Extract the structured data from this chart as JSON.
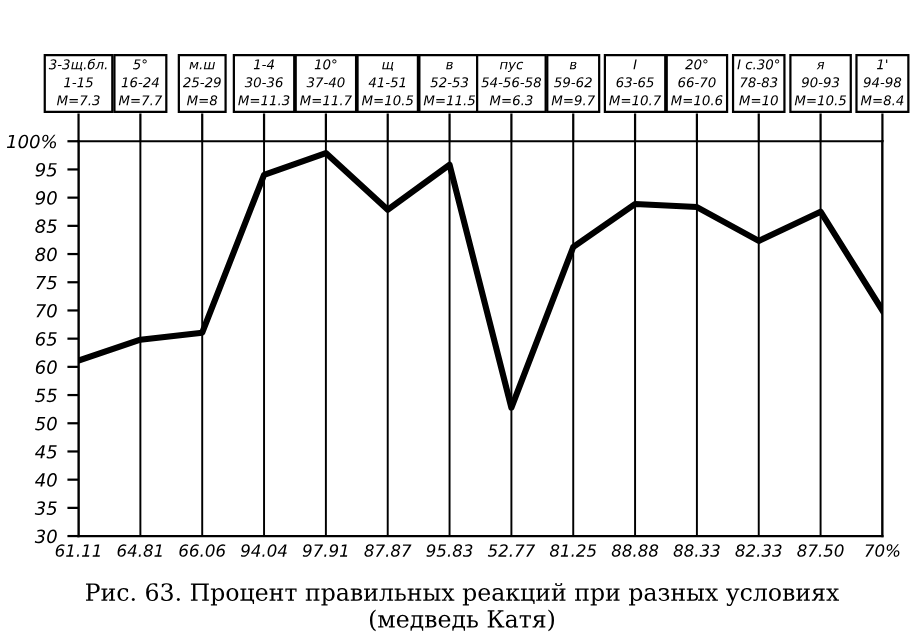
{
  "chart_data": {
    "type": "line",
    "title": "Рис. 63. Процент правильных реакций при разных условиях\n(медведь Катя)",
    "categories": [
      "3-3щ.бл.\n1-15\nМ=7.3",
      "5°\n16-24\nМ=7.7",
      "м.ш\n25-29\nМ=8",
      "1-4\n30-36\nМ=11.3",
      "10°\n37-40\nМ=11.7",
      "щ\n41-51\nМ=10.5",
      "в\n52-53\nМ=11.5",
      "пус\n54-56-58\nМ=6.3",
      "в\n59-62\nМ=9.7",
      "I\n63-65\nМ=10.7",
      "20°\n66-70\nМ=10.6",
      "I с.30°\n78-83\nМ=10",
      "я\n90-93\nМ=10.5",
      "1'\n94-98\nМ=8.4"
    ],
    "values": [
      61.11,
      64.81,
      66.06,
      94.04,
      97.91,
      87.87,
      95.83,
      52.77,
      81.25,
      88.88,
      88.33,
      82.33,
      87.5,
      70
    ],
    "value_labels": [
      "61.11",
      "64.81",
      "66.06",
      "94.04",
      "97.91",
      "87.87",
      "95.83",
      "52.77",
      "81.25",
      "88.88",
      "88.33",
      "82.33",
      "87.50",
      "70%"
    ],
    "color": "#000000",
    "ylim": [
      30,
      100
    ],
    "yticks": [
      30,
      35,
      40,
      45,
      50,
      55,
      60,
      65,
      70,
      75,
      80,
      85,
      90,
      95,
      {
        "value": 100,
        "label": "100%"
      }
    ],
    "grid": "x",
    "marker": "none",
    "line_style": "solid"
  }
}
